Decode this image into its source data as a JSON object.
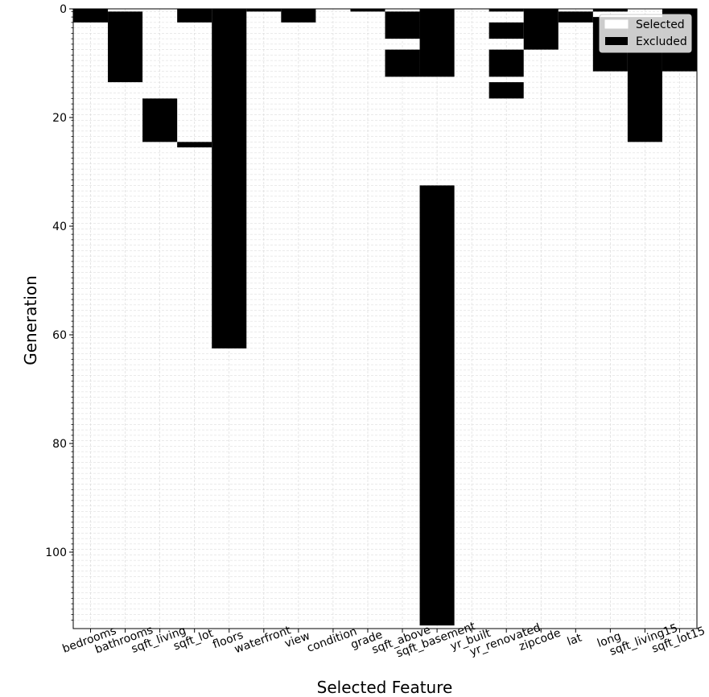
{
  "chart_data": {
    "type": "heatmap",
    "xlabel": "Selected Feature",
    "ylabel": "Generation",
    "features": [
      "bedrooms",
      "bathrooms",
      "sqft_living",
      "sqft_lot",
      "floors",
      "waterfront",
      "view",
      "condition",
      "grade",
      "sqft_above",
      "sqft_basement",
      "yr_built",
      "yr_renovated",
      "zipcode",
      "lat",
      "long",
      "sqft_living15",
      "sqft_lot15"
    ],
    "y_ticks": [
      0,
      20,
      40,
      60,
      80,
      100
    ],
    "ylim": [
      0,
      114
    ],
    "grid": true,
    "legend": {
      "position": "top-right",
      "entries": [
        {
          "label": "Selected",
          "color": "#ffffff"
        },
        {
          "label": "Excluded",
          "color": "#000000"
        }
      ]
    },
    "excluded_generation_ranges": {
      "bedrooms": [
        [
          0,
          2
        ]
      ],
      "bathrooms": [
        [
          1,
          13
        ]
      ],
      "sqft_living": [
        [
          17,
          24
        ]
      ],
      "sqft_lot": [
        [
          0,
          2
        ],
        [
          25,
          25
        ]
      ],
      "floors": [
        [
          0,
          62
        ]
      ],
      "waterfront": [
        [
          0,
          0
        ]
      ],
      "view": [
        [
          0,
          2
        ]
      ],
      "condition": [],
      "grade": [
        [
          0,
          0
        ]
      ],
      "sqft_above": [
        [
          1,
          5
        ],
        [
          8,
          12
        ]
      ],
      "sqft_basement": [
        [
          0,
          12
        ],
        [
          33,
          113
        ]
      ],
      "yr_built": [],
      "yr_renovated": [
        [
          0,
          0
        ],
        [
          3,
          5
        ],
        [
          8,
          12
        ],
        [
          14,
          16
        ]
      ],
      "zipcode": [
        [
          0,
          7
        ]
      ],
      "lat": [
        [
          1,
          2
        ]
      ],
      "long": [
        [
          0,
          0
        ],
        [
          2,
          11
        ]
      ],
      "sqft_living15": [
        [
          2,
          24
        ]
      ],
      "sqft_lot15": [
        [
          0,
          11
        ]
      ]
    }
  }
}
